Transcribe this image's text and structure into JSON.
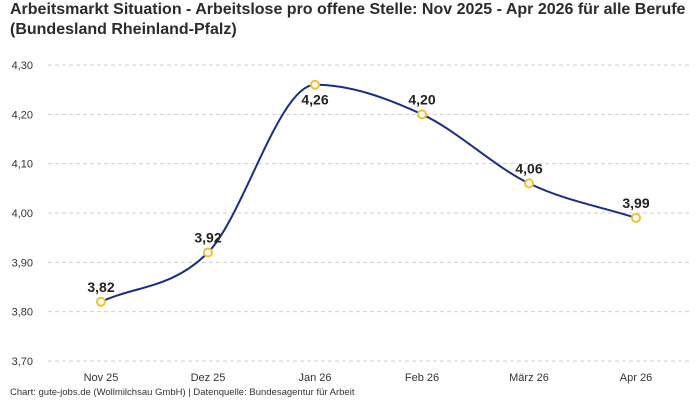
{
  "chart_data": {
    "type": "line",
    "title": "Arbeitsmarkt Situation - Arbeitslose pro offene Stelle: Nov 2025 - Apr 2026 für alle Berufe (Bundesland Rheinland-Pfalz)",
    "xlabel": "",
    "ylabel": "",
    "categories": [
      "Nov 25",
      "Dez 25",
      "Jan 26",
      "Feb 26",
      "März 26",
      "Apr 26"
    ],
    "series": [
      {
        "values": [
          3.82,
          3.92,
          4.26,
          4.2,
          4.06,
          3.99
        ],
        "labels": [
          "3,82",
          "3,92",
          "4,26",
          "4,20",
          "4,06",
          "3,99"
        ]
      }
    ],
    "ylim": [
      3.7,
      4.3
    ],
    "yticks": [
      3.7,
      3.8,
      3.9,
      4.0,
      4.1,
      4.2,
      4.3
    ],
    "ytick_labels": [
      "3,70",
      "3,80",
      "3,90",
      "4,00",
      "4,10",
      "4,20",
      "4,30"
    ],
    "grid": true,
    "legend": "none",
    "colors": {
      "line": "#1a2d86",
      "marker_stroke": "#f2c12e",
      "marker_fill": "#ffffff",
      "grid": "#cfcfcf"
    }
  },
  "footer": "Chart: gute-jobs.de (Wollmilchsau GmbH) | Datenquelle: Bundesagentur für Arbeit"
}
